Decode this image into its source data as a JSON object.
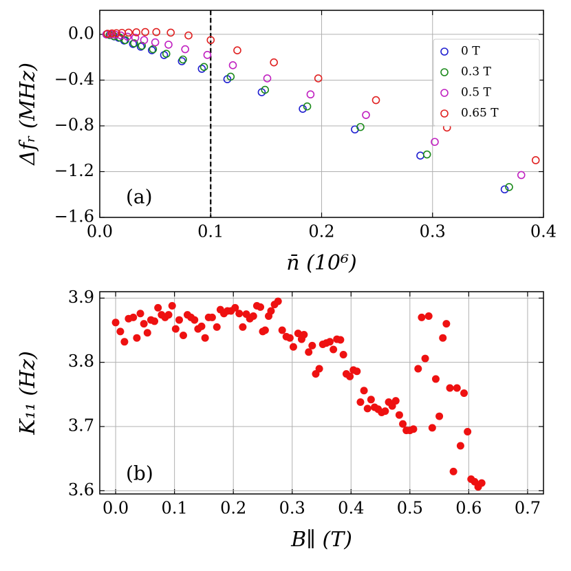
{
  "chart_data": [
    {
      "type": "scatter",
      "marker": "open",
      "xlabel": "n̄ (10⁶)",
      "ylabel": "Δfᵣ (MHz)",
      "annotation": "(a)",
      "vline": 0.1,
      "xlim": [
        0,
        0.4
      ],
      "ylim": [
        -1.6,
        0.21
      ],
      "xticks": [
        {
          "value": 0,
          "label": "0.0"
        },
        0.1,
        0.2,
        0.3,
        0.4
      ],
      "yticks": [
        {
          "value": 0,
          "label": "0.0"
        },
        {
          "value": -0.4,
          "label": "−0.4"
        },
        {
          "value": -0.8,
          "label": "−0.8"
        },
        {
          "value": -1.2,
          "label": "−1.2"
        },
        {
          "value": -1.6,
          "label": "−1.6"
        }
      ],
      "grid": true,
      "legend": "upper right",
      "series": [
        {
          "name": "0 T",
          "color": "#1f1fd0",
          "x": [
            0.006,
            0.009,
            0.013,
            0.017,
            0.022,
            0.03,
            0.037,
            0.047,
            0.058,
            0.074,
            0.092,
            0.115,
            0.146,
            0.183,
            0.23,
            0.289,
            0.365
          ],
          "values": [
            0,
            -0.006,
            -0.018,
            -0.03,
            -0.054,
            -0.084,
            -0.108,
            -0.139,
            -0.181,
            -0.235,
            -0.301,
            -0.392,
            -0.506,
            -0.651,
            -0.831,
            -1.06,
            -1.355
          ]
        },
        {
          "name": "0.3 T",
          "color": "#1a8a1a",
          "x": [
            0.006,
            0.009,
            0.013,
            0.018,
            0.023,
            0.031,
            0.038,
            0.048,
            0.06,
            0.075,
            0.094,
            0.118,
            0.149,
            0.187,
            0.235,
            0.295,
            0.369
          ],
          "values": [
            0,
            -0.005,
            -0.016,
            -0.028,
            -0.05,
            -0.078,
            -0.1,
            -0.13,
            -0.17,
            -0.22,
            -0.285,
            -0.37,
            -0.485,
            -0.63,
            -0.81,
            -1.05,
            -1.335
          ]
        },
        {
          "name": "0.5 T",
          "color": "#c020c0",
          "x": [
            0.006,
            0.01,
            0.014,
            0.019,
            0.025,
            0.032,
            0.04,
            0.05,
            0.062,
            0.077,
            0.097,
            0.12,
            0.151,
            0.19,
            0.24,
            0.302,
            0.38
          ],
          "values": [
            0,
            0,
            -0.003,
            -0.01,
            -0.02,
            -0.03,
            -0.05,
            -0.07,
            -0.09,
            -0.13,
            -0.18,
            -0.27,
            -0.385,
            -0.525,
            -0.705,
            -0.94,
            -1.23
          ]
        },
        {
          "name": "0.65 T",
          "color": "#e02020",
          "x": [
            0.007,
            0.011,
            0.015,
            0.02,
            0.026,
            0.033,
            0.041,
            0.051,
            0.064,
            0.08,
            0.1,
            0.124,
            0.157,
            0.197,
            0.249,
            0.313,
            0.393
          ],
          "values": [
            0.005,
            0.008,
            0.01,
            0.013,
            0.015,
            0.018,
            0.02,
            0.02,
            0.015,
            -0.01,
            -0.05,
            -0.14,
            -0.245,
            -0.385,
            -0.575,
            -0.815,
            -1.1
          ]
        }
      ]
    },
    {
      "type": "scatter",
      "marker": "filled",
      "xlabel": "B∥ (T)",
      "ylabel": "K₁₁ (Hz)",
      "annotation": "(b)",
      "xlim": [
        -0.027,
        0.727
      ],
      "ylim": [
        3.595,
        3.91
      ],
      "xticks": [
        {
          "value": 0,
          "label": "0.0"
        },
        0.1,
        0.2,
        0.3,
        0.4,
        0.5,
        0.6,
        0.7
      ],
      "yticks": [
        3.6,
        3.7,
        3.8,
        3.9
      ],
      "grid": true,
      "series": [
        {
          "color": "#ee1111",
          "x": [
            0.0,
            0.008,
            0.015,
            0.022,
            0.03,
            0.036,
            0.042,
            0.048,
            0.054,
            0.06,
            0.066,
            0.072,
            0.078,
            0.084,
            0.09,
            0.096,
            0.102,
            0.108,
            0.115,
            0.122,
            0.128,
            0.134,
            0.14,
            0.146,
            0.152,
            0.158,
            0.164,
            0.172,
            0.178,
            0.184,
            0.19,
            0.196,
            0.203,
            0.21,
            0.216,
            0.222,
            0.228,
            0.234,
            0.24,
            0.246,
            0.25,
            0.254,
            0.26,
            0.264,
            0.27,
            0.276,
            0.283,
            0.29,
            0.296,
            0.302,
            0.31,
            0.316,
            0.32,
            0.328,
            0.334,
            0.34,
            0.346,
            0.352,
            0.358,
            0.364,
            0.37,
            0.376,
            0.382,
            0.387,
            0.392,
            0.398,
            0.404,
            0.41,
            0.416,
            0.422,
            0.428,
            0.434,
            0.44,
            0.446,
            0.452,
            0.458,
            0.464,
            0.47,
            0.476,
            0.482,
            0.488,
            0.494,
            0.5,
            0.506,
            0.514,
            0.52,
            0.526,
            0.532,
            0.538,
            0.544,
            0.55,
            0.556,
            0.562,
            0.568,
            0.574,
            0.58,
            0.586,
            0.592,
            0.598,
            0.604,
            0.61,
            0.616,
            0.622
          ],
          "values": [
            3.862,
            3.848,
            3.832,
            3.868,
            3.87,
            3.838,
            3.876,
            3.86,
            3.846,
            3.866,
            3.864,
            3.885,
            3.874,
            3.87,
            3.874,
            3.888,
            3.852,
            3.866,
            3.842,
            3.874,
            3.87,
            3.866,
            3.852,
            3.856,
            3.838,
            3.87,
            3.87,
            3.855,
            3.882,
            3.876,
            3.88,
            3.88,
            3.885,
            3.876,
            3.855,
            3.875,
            3.868,
            3.872,
            3.888,
            3.886,
            3.848,
            3.85,
            3.872,
            3.88,
            3.89,
            3.895,
            3.85,
            3.84,
            3.838,
            3.824,
            3.845,
            3.836,
            3.843,
            3.816,
            3.826,
            3.782,
            3.79,
            3.828,
            3.83,
            3.832,
            3.82,
            3.836,
            3.835,
            3.812,
            3.782,
            3.778,
            3.788,
            3.786,
            3.738,
            3.756,
            3.728,
            3.742,
            3.73,
            3.727,
            3.722,
            3.724,
            3.738,
            3.732,
            3.74,
            3.718,
            3.704,
            3.694,
            3.694,
            3.696,
            3.79,
            3.87,
            3.806,
            3.872,
            3.698,
            3.774,
            3.716,
            3.838,
            3.86,
            3.76,
            3.63,
            3.76,
            3.67,
            3.752,
            3.692,
            3.618,
            3.614,
            3.606,
            3.612
          ]
        }
      ]
    }
  ]
}
